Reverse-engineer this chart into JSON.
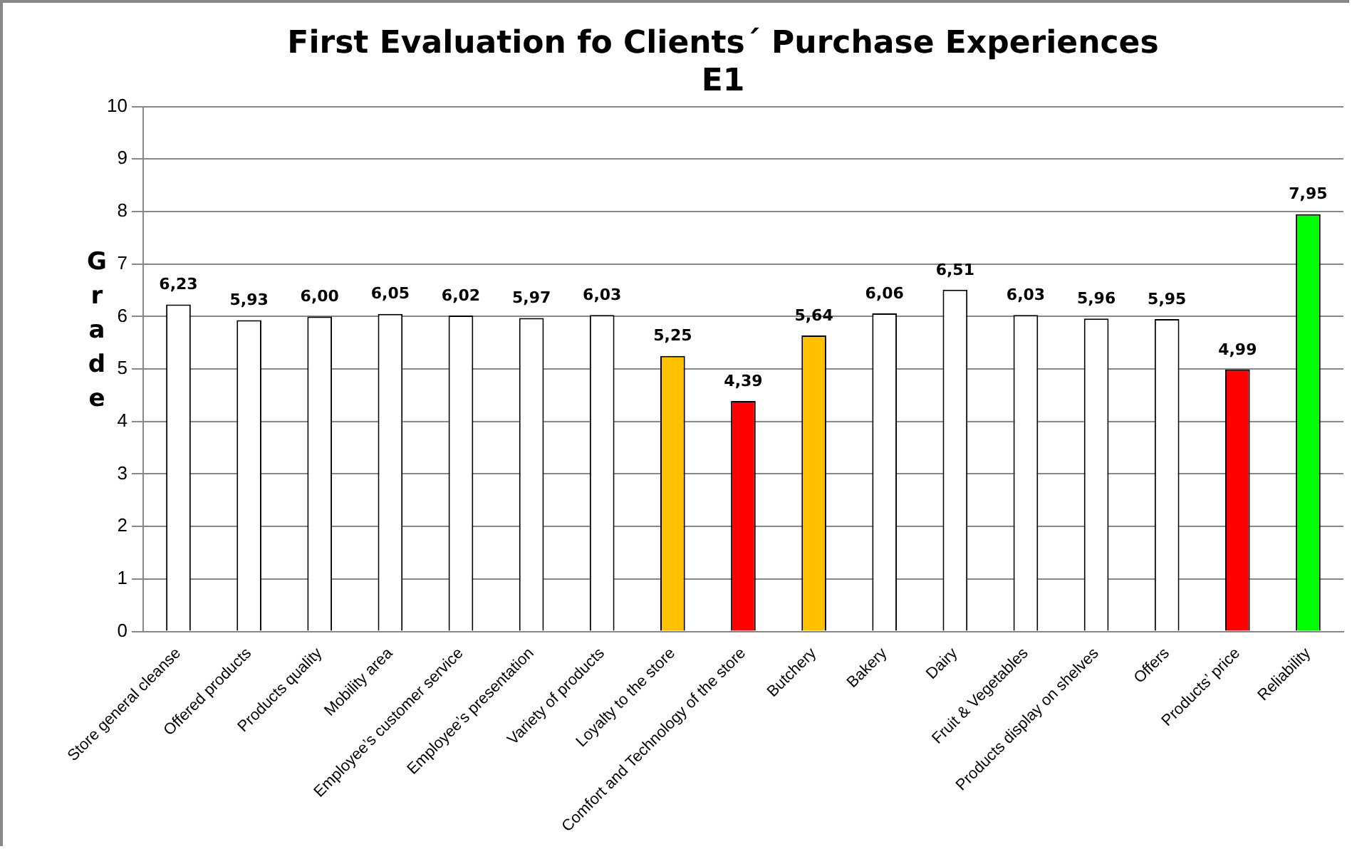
{
  "chart_data": {
    "type": "bar",
    "title": "First Evaluation fo Clients´ Purchase Experiences",
    "subtitle": "E1",
    "ylabel": "Grade",
    "categories": [
      "Store general cleanse",
      "Offered products",
      "Products quality",
      "Mobility area",
      "Employee’s customer service",
      "Employee’s presentation",
      "Variety of products",
      "Loyalty to the store",
      "Comfort and Technology of the store",
      "Butchery",
      "Bakery",
      "Dairy",
      "Fruit & Vegetables",
      "Products display on shelves",
      "Offers",
      "Products’ price",
      "Reliability"
    ],
    "values": [
      6.23,
      5.93,
      6.0,
      6.05,
      6.02,
      5.97,
      6.03,
      5.25,
      4.39,
      5.64,
      6.06,
      6.51,
      6.03,
      5.96,
      5.95,
      4.99,
      7.95
    ],
    "colors": [
      "#ffffff",
      "#ffffff",
      "#ffffff",
      "#ffffff",
      "#ffffff",
      "#ffffff",
      "#ffffff",
      "#ffc000",
      "#ff0000",
      "#ffc000",
      "#ffffff",
      "#ffffff",
      "#ffffff",
      "#ffffff",
      "#ffffff",
      "#ff0000",
      "#00ff00"
    ],
    "value_labels": [
      "6,23",
      "5,93",
      "6,00",
      "6,05",
      "6,02",
      "5,97",
      "6,03",
      "5,25",
      "4,39",
      "5,64",
      "6,06",
      "6,51",
      "6,03",
      "5,96",
      "5,95",
      "4,99",
      "7,95"
    ],
    "ylim": [
      0,
      10
    ],
    "yticks": [
      0,
      1,
      2,
      3,
      4,
      5,
      6,
      7,
      8,
      9,
      10
    ],
    "grid": "y",
    "legend": false
  }
}
